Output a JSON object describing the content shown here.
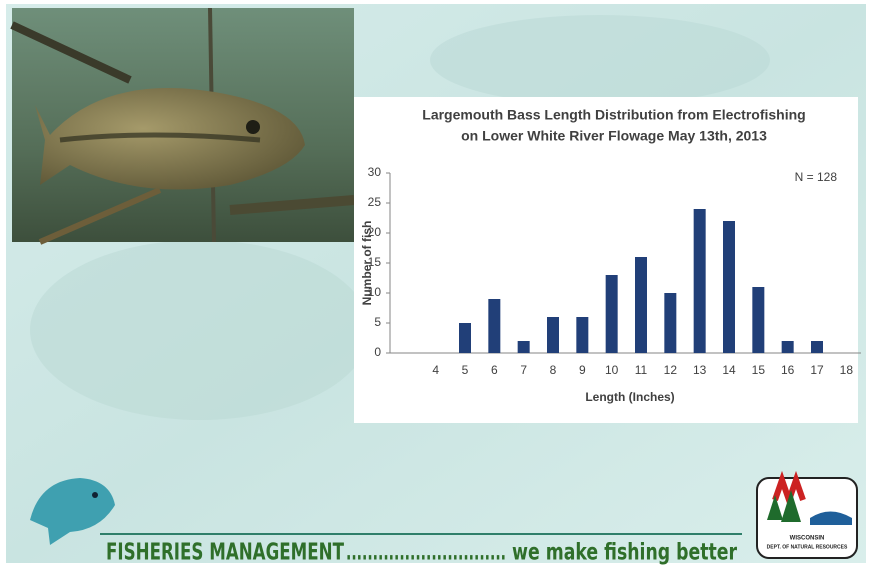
{
  "chart_data": {
    "type": "bar",
    "title": [
      "Largemouth Bass Length Distribution from Electrofishing",
      "on Lower White River Flowage May 13th, 2013"
    ],
    "annotations": [
      "N = 128"
    ],
    "x_label": "Length (Inches)",
    "y_label": "Number of fish",
    "categories": [
      "4",
      "5",
      "6",
      "7",
      "8",
      "9",
      "10",
      "11",
      "12",
      "13",
      "14",
      "15",
      "16",
      "17",
      "18"
    ],
    "values": [
      0,
      5,
      9,
      2,
      6,
      6,
      13,
      16,
      10,
      24,
      22,
      11,
      2,
      2,
      0
    ],
    "color": "#213f78",
    "ylim": [
      0,
      30
    ],
    "yticks": [
      0,
      5,
      10,
      15,
      20,
      25,
      30
    ],
    "grid": false
  },
  "footer": {
    "slogan_left": "FISHERIES MANAGEMENT",
    "dots": "..............................",
    "slogan_right": "we make fishing better",
    "logo_line1": "WISCONSIN",
    "logo_line2": "DEPT. OF NATURAL RESOURCES"
  }
}
